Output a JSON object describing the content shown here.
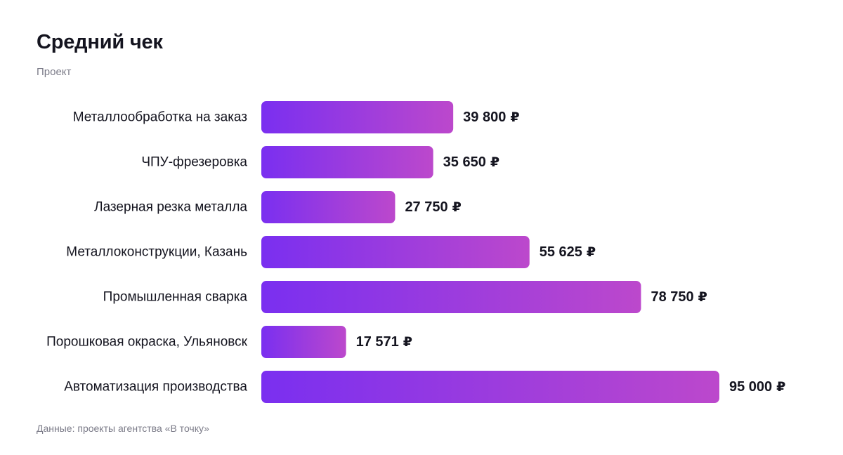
{
  "header": {
    "title": "Средний чек",
    "subtitle": "Проект"
  },
  "footer": {
    "source": "Данные: проекты агентства «В точку»"
  },
  "colors": {
    "bar_gradient_start": "#7a2ff0",
    "bar_gradient_end": "#bc48cc",
    "text": "#14141f",
    "muted": "#7b7b88"
  },
  "chart_data": {
    "type": "bar",
    "orientation": "horizontal",
    "categories": [
      "Металлообработка на заказ",
      "ЧПУ-фрезеровка",
      "Лазерная резка металла",
      "Металлоконструкции, Казань",
      "Промышленная сварка",
      "Порошковая окраска, Ульяновск",
      "Автоматизация производства"
    ],
    "values": [
      39800,
      35650,
      27750,
      55625,
      78750,
      17571,
      95000
    ],
    "value_labels": [
      "39 800",
      "35 650",
      "27 750",
      "55 625",
      "78 750",
      "17 571",
      "95 000"
    ],
    "value_unit": "₽",
    "title": "Средний чек",
    "subtitle": "Проект",
    "xlim": [
      0,
      95000
    ],
    "grid": false,
    "legend": "none"
  }
}
